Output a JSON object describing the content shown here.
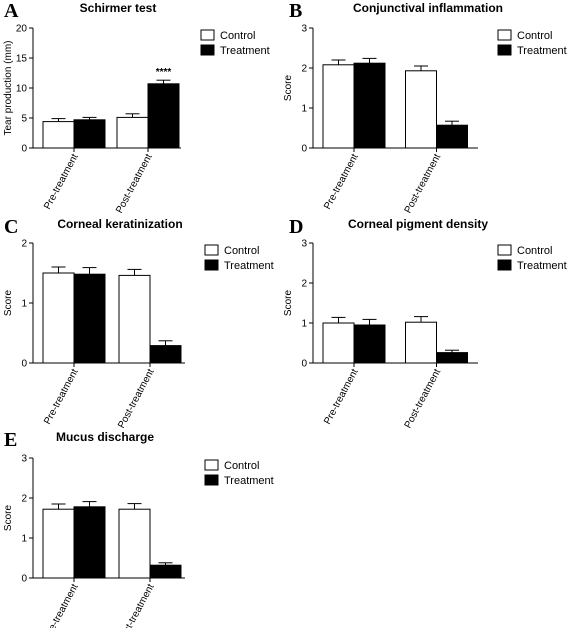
{
  "chart_data": [
    {
      "panel": "A",
      "type": "bar",
      "title": "Schirmer test",
      "ylabel": "Tear production (mm)",
      "xlabel": "",
      "ylim": [
        0,
        20
      ],
      "yticks": [
        0,
        5,
        10,
        15,
        20
      ],
      "categories": [
        "Pre-treatment",
        "Post-treatment"
      ],
      "legend": "top-right",
      "series": [
        {
          "name": "Control",
          "values": [
            4.4,
            5.1
          ],
          "errors": [
            0.5,
            0.6
          ],
          "color": "#ffffff"
        },
        {
          "name": "Treatment",
          "values": [
            4.7,
            10.7
          ],
          "errors": [
            0.4,
            0.6
          ],
          "color": "#000000"
        }
      ],
      "annotations": [
        {
          "category": 1,
          "series": 1,
          "text": "****"
        }
      ]
    },
    {
      "panel": "B",
      "type": "bar",
      "title": "Conjunctival inflammation",
      "ylabel": "Score",
      "xlabel": "",
      "ylim": [
        0,
        3
      ],
      "yticks": [
        0,
        1,
        2,
        3
      ],
      "categories": [
        "Pre-treatment",
        "Post-treatment"
      ],
      "legend": "top-right",
      "series": [
        {
          "name": "Control",
          "values": [
            2.08,
            1.93
          ],
          "errors": [
            0.12,
            0.12
          ],
          "color": "#ffffff"
        },
        {
          "name": "Treatment",
          "values": [
            2.12,
            0.57
          ],
          "errors": [
            0.12,
            0.1
          ],
          "color": "#000000"
        }
      ],
      "annotations": []
    },
    {
      "panel": "C",
      "type": "bar",
      "title": "Corneal keratinization",
      "ylabel": "Score",
      "xlabel": "",
      "ylim": [
        0,
        2
      ],
      "yticks": [
        0,
        1,
        2
      ],
      "categories": [
        "Pre-treatment",
        "Post-treatment"
      ],
      "legend": "top-right",
      "series": [
        {
          "name": "Control",
          "values": [
            1.5,
            1.46
          ],
          "errors": [
            0.1,
            0.1
          ],
          "color": "#ffffff"
        },
        {
          "name": "Treatment",
          "values": [
            1.48,
            0.29
          ],
          "errors": [
            0.11,
            0.08
          ],
          "color": "#000000"
        }
      ],
      "annotations": []
    },
    {
      "panel": "D",
      "type": "bar",
      "title": "Corneal pigment density",
      "ylabel": "Score",
      "xlabel": "",
      "ylim": [
        0,
        3
      ],
      "yticks": [
        0,
        1,
        2,
        3
      ],
      "categories": [
        "Pre-treatment",
        "Post-treatment"
      ],
      "legend": "top-right",
      "series": [
        {
          "name": "Control",
          "values": [
            1.0,
            1.02
          ],
          "errors": [
            0.14,
            0.14
          ],
          "color": "#ffffff"
        },
        {
          "name": "Treatment",
          "values": [
            0.95,
            0.26
          ],
          "errors": [
            0.14,
            0.06
          ],
          "color": "#000000"
        }
      ],
      "annotations": []
    },
    {
      "panel": "E",
      "type": "bar",
      "title": "Mucus discharge",
      "ylabel": "Score",
      "xlabel": "",
      "ylim": [
        0,
        3
      ],
      "yticks": [
        0,
        1,
        2,
        3
      ],
      "categories": [
        "Pre-treatment",
        "Post-treatment"
      ],
      "legend": "top-right",
      "series": [
        {
          "name": "Control",
          "values": [
            1.72,
            1.72
          ],
          "errors": [
            0.13,
            0.14
          ],
          "color": "#ffffff"
        },
        {
          "name": "Treatment",
          "values": [
            1.78,
            0.32
          ],
          "errors": [
            0.13,
            0.06
          ],
          "color": "#000000"
        }
      ],
      "annotations": []
    }
  ]
}
